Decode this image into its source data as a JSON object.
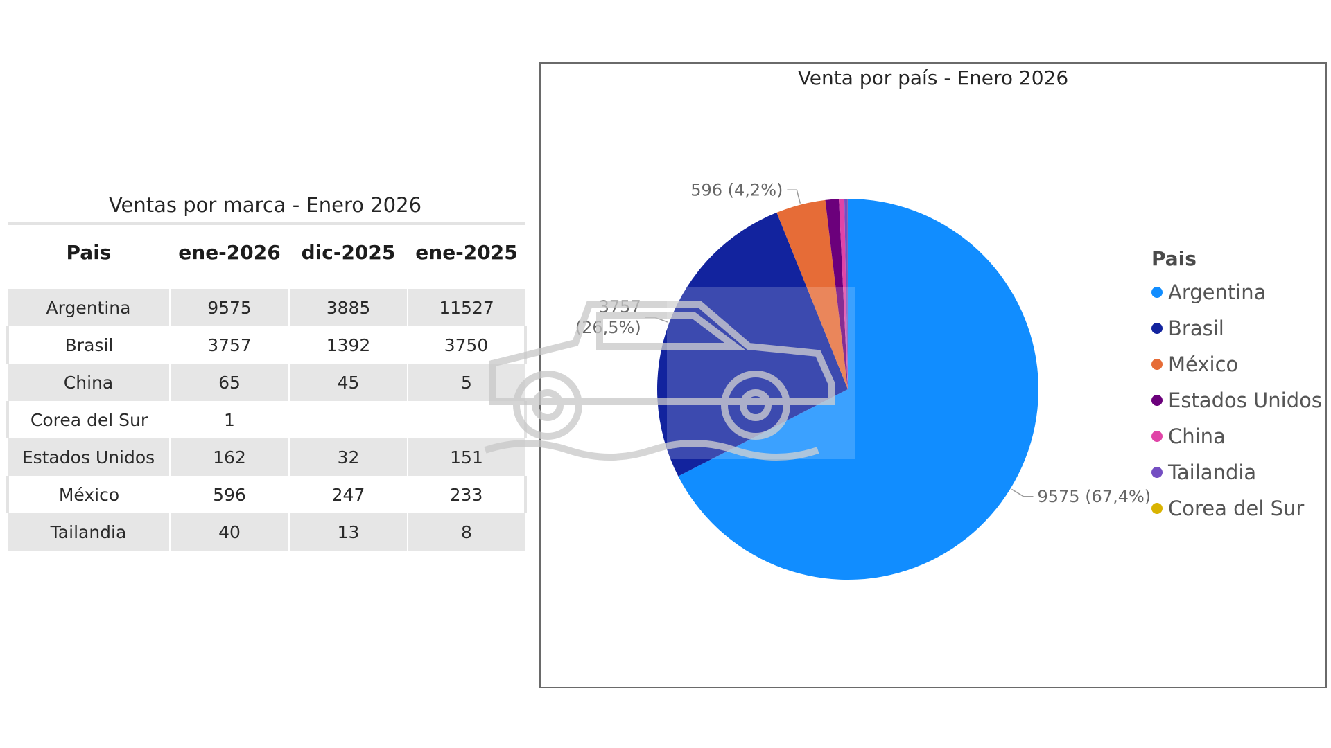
{
  "table": {
    "title": "Ventas por marca - Enero 2026",
    "headers": [
      "Pais",
      "ene-2026",
      "dic-2025",
      "ene-2025"
    ],
    "rows": [
      [
        "Argentina",
        "9575",
        "3885",
        "11527"
      ],
      [
        "Brasil",
        "3757",
        "1392",
        "3750"
      ],
      [
        "China",
        "65",
        "45",
        "5"
      ],
      [
        "Corea del Sur",
        "1",
        "",
        ""
      ],
      [
        "Estados Unidos",
        "162",
        "32",
        "151"
      ],
      [
        "México",
        "596",
        "247",
        "233"
      ],
      [
        "Tailandia",
        "40",
        "13",
        "8"
      ]
    ]
  },
  "chart_data": {
    "type": "pie",
    "title": "Venta por país - Enero 2026",
    "legend_title": "Pais",
    "legend_position": "right",
    "categories": [
      "Argentina",
      "Brasil",
      "México",
      "Estados Unidos",
      "China",
      "Tailandia",
      "Corea del Sur"
    ],
    "values": [
      9575,
      3757,
      596,
      162,
      65,
      40,
      1
    ],
    "colors": [
      "#118dff",
      "#12239e",
      "#e66c37",
      "#6b007b",
      "#e044a7",
      "#744ec2",
      "#d9b300"
    ],
    "data_labels": [
      {
        "category": "Argentina",
        "lines": [
          "9575 (67,4%)"
        ]
      },
      {
        "category": "Brasil",
        "lines": [
          "3757",
          "(26,5%)"
        ]
      },
      {
        "category": "México",
        "lines": [
          "596 (4,2%)"
        ]
      }
    ]
  }
}
